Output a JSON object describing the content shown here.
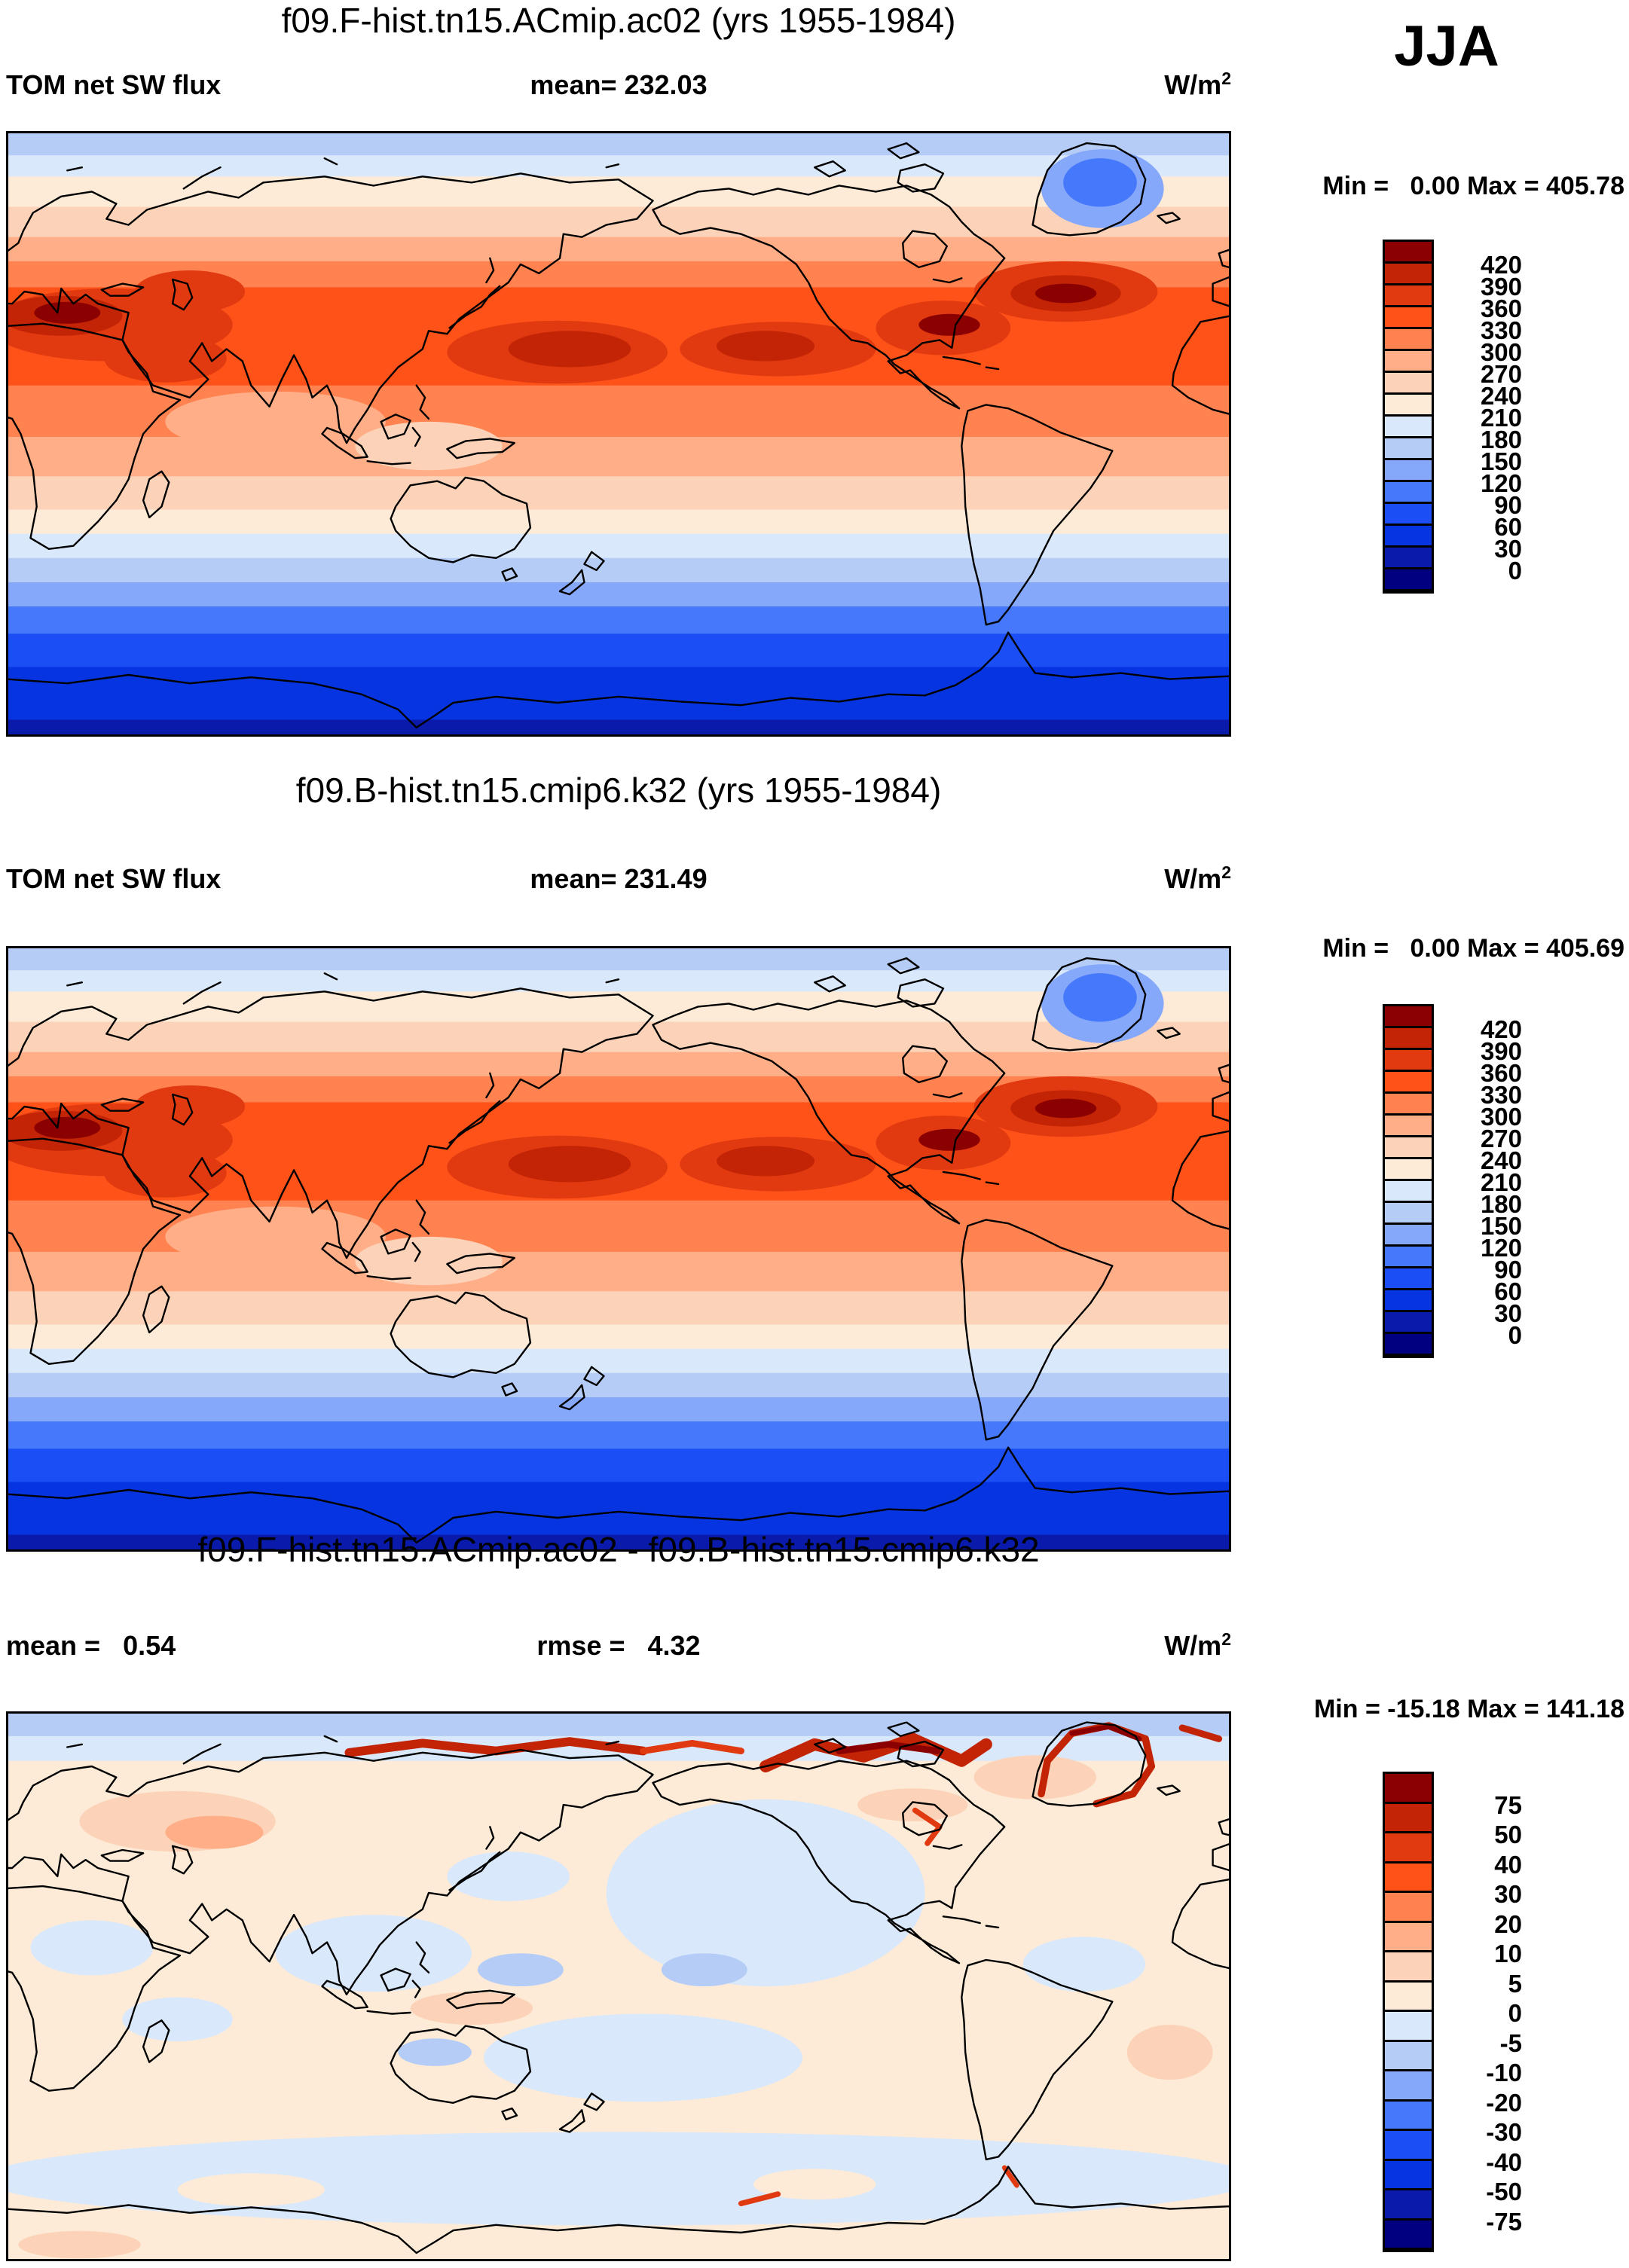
{
  "season_label": "JJA",
  "palette": [
    "#8B0000",
    "#C22405",
    "#E13A10",
    "#FF5219",
    "#FF8250",
    "#FFAE87",
    "#FCD3B8",
    "#FDEBD7",
    "#D9E8FB",
    "#B5CDF6",
    "#86A8FA",
    "#4578FA",
    "#1B4FF5",
    "#0634E0",
    "#0A1BAB",
    "#010080"
  ],
  "chart_data": [
    {
      "type": "contour_map",
      "title": "f09.F-hist.tn15.ACmip.ac02 (yrs 1955-1984)",
      "variable": "TOM net SW flux",
      "season": "JJA",
      "units": "W/m2",
      "mean": 232.03,
      "min": 0.0,
      "max": 405.78,
      "labels": {
        "stats_left": "TOM net SW flux",
        "stats_center": "mean= 232.03",
        "units_base": "W/m",
        "units_exp": "2",
        "minmax": "Min =   0.00 Max = 405.78"
      },
      "colorbar": {
        "levels": [
          420,
          390,
          360,
          330,
          300,
          270,
          240,
          210,
          180,
          150,
          120,
          90,
          60,
          30,
          0
        ]
      },
      "map": {
        "bands": [
          {
            "to": 0.04,
            "lv": 9
          },
          {
            "to": 0.075,
            "lv": 8
          },
          {
            "to": 0.125,
            "lv": 7
          },
          {
            "to": 0.175,
            "lv": 6
          },
          {
            "to": 0.215,
            "lv": 5
          },
          {
            "to": 0.258,
            "lv": 4
          },
          {
            "to": 0.42,
            "lv": 3
          },
          {
            "to": 0.505,
            "lv": 4
          },
          {
            "to": 0.57,
            "lv": 5
          },
          {
            "to": 0.625,
            "lv": 6
          },
          {
            "to": 0.665,
            "lv": 7
          },
          {
            "to": 0.705,
            "lv": 8
          },
          {
            "to": 0.745,
            "lv": 9
          },
          {
            "to": 0.785,
            "lv": 10
          },
          {
            "to": 0.83,
            "lv": 11
          },
          {
            "to": 0.885,
            "lv": 12
          },
          {
            "to": 0.972,
            "lv": 13
          },
          {
            "to": 1.0,
            "lv": 14
          }
        ],
        "features": [
          [
            0.085,
            0.32,
            0.1,
            0.06,
            2
          ],
          [
            0.045,
            0.305,
            0.05,
            0.033,
            1
          ],
          [
            0.05,
            0.3,
            0.027,
            0.018,
            0
          ],
          [
            0.15,
            0.265,
            0.045,
            0.035,
            2
          ],
          [
            0.13,
            0.375,
            0.05,
            0.04,
            2
          ],
          [
            0.45,
            0.365,
            0.09,
            0.052,
            2
          ],
          [
            0.46,
            0.36,
            0.05,
            0.03,
            1
          ],
          [
            0.63,
            0.36,
            0.08,
            0.045,
            2
          ],
          [
            0.62,
            0.355,
            0.04,
            0.025,
            1
          ],
          [
            0.765,
            0.325,
            0.055,
            0.045,
            2
          ],
          [
            0.77,
            0.32,
            0.025,
            0.018,
            0
          ],
          [
            0.865,
            0.265,
            0.075,
            0.05,
            2
          ],
          [
            0.865,
            0.268,
            0.045,
            0.03,
            1
          ],
          [
            0.865,
            0.268,
            0.025,
            0.016,
            0
          ],
          [
            0.22,
            0.48,
            0.09,
            0.05,
            5
          ],
          [
            0.345,
            0.52,
            0.06,
            0.04,
            6
          ],
          [
            0.895,
            0.095,
            0.05,
            0.065,
            10
          ],
          [
            0.893,
            0.085,
            0.03,
            0.04,
            11
          ]
        ],
        "strokes": []
      }
    },
    {
      "type": "contour_map",
      "title": "f09.B-hist.tn15.cmip6.k32 (yrs 1955-1984)",
      "variable": "TOM net SW flux",
      "season": "JJA",
      "units": "W/m2",
      "mean": 231.49,
      "min": 0.0,
      "max": 405.69,
      "labels": {
        "stats_left": "TOM net SW flux",
        "stats_center": "mean= 231.49",
        "units_base": "W/m",
        "units_exp": "2",
        "minmax": "Min =   0.00 Max = 405.69"
      },
      "colorbar": {
        "levels": [
          420,
          390,
          360,
          330,
          300,
          270,
          240,
          210,
          180,
          150,
          120,
          90,
          60,
          30,
          0
        ]
      },
      "map": {
        "bands": [
          {
            "to": 0.04,
            "lv": 9
          },
          {
            "to": 0.075,
            "lv": 8
          },
          {
            "to": 0.125,
            "lv": 7
          },
          {
            "to": 0.175,
            "lv": 6
          },
          {
            "to": 0.215,
            "lv": 5
          },
          {
            "to": 0.258,
            "lv": 4
          },
          {
            "to": 0.42,
            "lv": 3
          },
          {
            "to": 0.505,
            "lv": 4
          },
          {
            "to": 0.57,
            "lv": 5
          },
          {
            "to": 0.625,
            "lv": 6
          },
          {
            "to": 0.665,
            "lv": 7
          },
          {
            "to": 0.705,
            "lv": 8
          },
          {
            "to": 0.745,
            "lv": 9
          },
          {
            "to": 0.785,
            "lv": 10
          },
          {
            "to": 0.83,
            "lv": 11
          },
          {
            "to": 0.885,
            "lv": 12
          },
          {
            "to": 0.972,
            "lv": 13
          },
          {
            "to": 1.0,
            "lv": 14
          }
        ],
        "features": [
          [
            0.085,
            0.32,
            0.1,
            0.06,
            2
          ],
          [
            0.045,
            0.305,
            0.05,
            0.033,
            1
          ],
          [
            0.05,
            0.3,
            0.027,
            0.018,
            0
          ],
          [
            0.15,
            0.265,
            0.045,
            0.035,
            2
          ],
          [
            0.13,
            0.375,
            0.05,
            0.04,
            2
          ],
          [
            0.45,
            0.365,
            0.09,
            0.052,
            2
          ],
          [
            0.46,
            0.36,
            0.05,
            0.03,
            1
          ],
          [
            0.63,
            0.36,
            0.08,
            0.045,
            2
          ],
          [
            0.62,
            0.355,
            0.04,
            0.025,
            1
          ],
          [
            0.765,
            0.325,
            0.055,
            0.045,
            2
          ],
          [
            0.77,
            0.32,
            0.025,
            0.018,
            0
          ],
          [
            0.865,
            0.265,
            0.075,
            0.05,
            2
          ],
          [
            0.865,
            0.268,
            0.045,
            0.03,
            1
          ],
          [
            0.865,
            0.268,
            0.025,
            0.016,
            0
          ],
          [
            0.22,
            0.48,
            0.09,
            0.05,
            5
          ],
          [
            0.345,
            0.52,
            0.06,
            0.04,
            6
          ],
          [
            0.895,
            0.095,
            0.05,
            0.065,
            10
          ],
          [
            0.893,
            0.085,
            0.03,
            0.04,
            11
          ]
        ],
        "strokes": []
      }
    },
    {
      "type": "contour_map_difference",
      "title": "f09.F-hist.tn15.ACmip.ac02 - f09.B-hist.tn15.cmip6.k32",
      "variable": "TOM net SW flux",
      "season": "JJA",
      "units": "W/m2",
      "mean": 0.54,
      "rmse": 4.32,
      "min": -15.18,
      "max": 141.18,
      "labels": {
        "stats_left": "mean =   0.54",
        "stats_center": "rmse =   4.32",
        "units_base": "W/m",
        "units_exp": "2",
        "minmax": "Min = -15.18 Max = 141.18"
      },
      "colorbar": {
        "levels": [
          75,
          50,
          40,
          30,
          20,
          10,
          5,
          0,
          -5,
          -10,
          -20,
          -30,
          -40,
          -50,
          -75
        ]
      },
      "map": {
        "bands": [
          {
            "to": 0.045,
            "lv": 9
          },
          {
            "to": 0.09,
            "lv": 8
          },
          {
            "to": 1.0,
            "lv": 7
          }
        ],
        "features": [
          [
            0.62,
            0.33,
            0.13,
            0.17,
            8
          ],
          [
            0.3,
            0.44,
            0.08,
            0.07,
            8
          ],
          [
            0.41,
            0.3,
            0.05,
            0.045,
            8
          ],
          [
            0.52,
            0.63,
            0.13,
            0.08,
            8
          ],
          [
            0.88,
            0.46,
            0.05,
            0.05,
            8
          ],
          [
            0.07,
            0.43,
            0.05,
            0.05,
            8
          ],
          [
            0.14,
            0.56,
            0.045,
            0.04,
            8
          ],
          [
            0.42,
            0.47,
            0.035,
            0.03,
            9
          ],
          [
            0.57,
            0.47,
            0.035,
            0.03,
            9
          ],
          [
            0.35,
            0.62,
            0.03,
            0.025,
            9
          ],
          [
            0.5,
            0.85,
            0.52,
            0.085,
            8
          ],
          [
            0.2,
            0.87,
            0.06,
            0.03,
            7
          ],
          [
            0.66,
            0.86,
            0.05,
            0.028,
            7
          ],
          [
            0.14,
            0.2,
            0.08,
            0.055,
            6
          ],
          [
            0.17,
            0.22,
            0.04,
            0.03,
            5
          ],
          [
            0.38,
            0.54,
            0.05,
            0.03,
            6
          ],
          [
            0.74,
            0.17,
            0.045,
            0.03,
            6
          ],
          [
            0.95,
            0.62,
            0.035,
            0.05,
            6
          ],
          [
            0.06,
            0.97,
            0.05,
            0.025,
            6
          ],
          [
            0.84,
            0.12,
            0.05,
            0.04,
            6
          ]
        ],
        "strokes": [
          {
            "pts": [
              [
                0.28,
                0.075
              ],
              [
                0.34,
                0.058
              ],
              [
                0.4,
                0.072
              ],
              [
                0.46,
                0.055
              ],
              [
                0.52,
                0.072
              ]
            ],
            "w": 0.016,
            "lv": 1
          },
          {
            "pts": [
              [
                0.52,
                0.072
              ],
              [
                0.56,
                0.058
              ],
              [
                0.6,
                0.072
              ]
            ],
            "w": 0.012,
            "lv": 2
          },
          {
            "pts": [
              [
                0.62,
                0.1
              ],
              [
                0.66,
                0.06
              ],
              [
                0.7,
                0.082
              ],
              [
                0.74,
                0.05
              ],
              [
                0.78,
                0.09
              ],
              [
                0.8,
                0.06
              ]
            ],
            "w": 0.022,
            "lv": 1
          },
          {
            "pts": [
              [
                0.68,
                0.072
              ],
              [
                0.72,
                0.06
              ],
              [
                0.76,
                0.072
              ]
            ],
            "w": 0.012,
            "lv": 0
          },
          {
            "pts": [
              [
                0.845,
                0.15
              ],
              [
                0.85,
                0.09
              ],
              [
                0.87,
                0.04
              ],
              [
                0.9,
                0.026
              ],
              [
                0.93,
                0.05
              ],
              [
                0.935,
                0.1
              ],
              [
                0.92,
                0.15
              ],
              [
                0.89,
                0.168
              ]
            ],
            "w": 0.013,
            "lv": 1
          },
          {
            "pts": [
              [
                0.87,
                0.04
              ],
              [
                0.9,
                0.028
              ],
              [
                0.925,
                0.05
              ]
            ],
            "w": 0.009,
            "lv": 0
          },
          {
            "pts": [
              [
                0.96,
                0.03
              ],
              [
                0.99,
                0.05
              ]
            ],
            "w": 0.012,
            "lv": 1
          },
          {
            "pts": [
              [
                0.742,
                0.18
              ],
              [
                0.762,
                0.21
              ],
              [
                0.752,
                0.24
              ]
            ],
            "w": 0.01,
            "lv": 2
          },
          {
            "pts": [
              [
                0.6,
                0.895
              ],
              [
                0.63,
                0.878
              ]
            ],
            "w": 0.01,
            "lv": 2
          },
          {
            "pts": [
              [
                0.815,
                0.83
              ],
              [
                0.825,
                0.862
              ]
            ],
            "w": 0.009,
            "lv": 2
          }
        ]
      }
    }
  ]
}
